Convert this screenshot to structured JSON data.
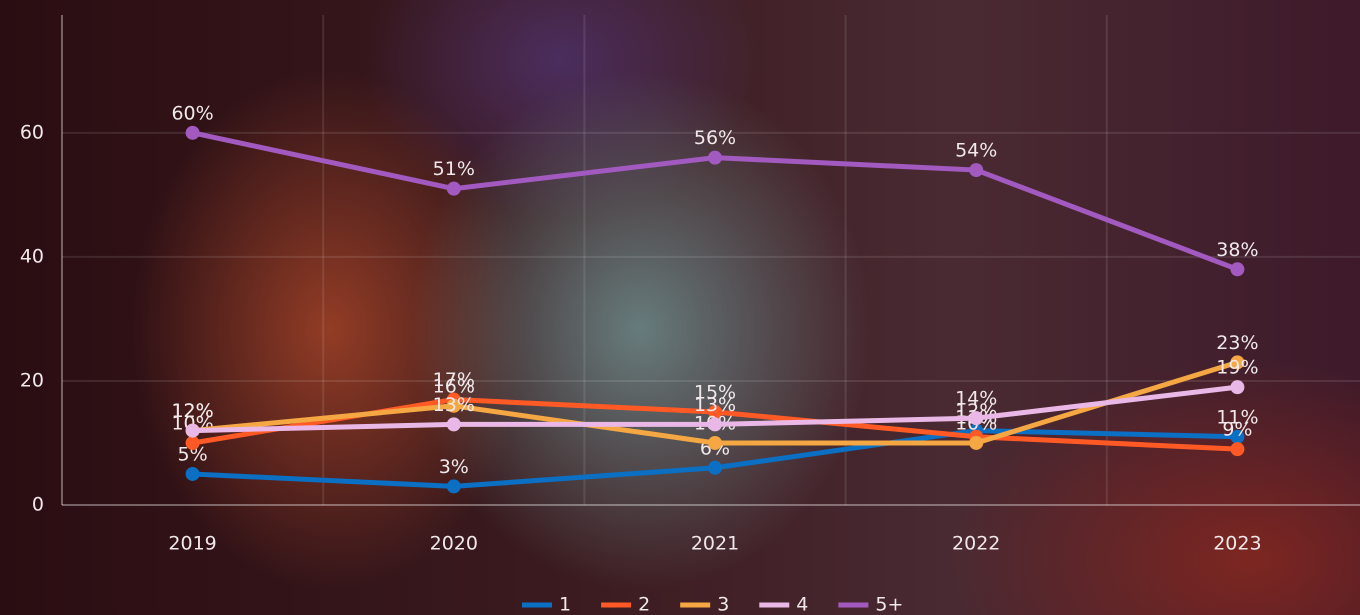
{
  "chart_data": {
    "type": "line",
    "categories": [
      "2019",
      "2020",
      "2021",
      "2022",
      "2023"
    ],
    "series": [
      {
        "name": "1",
        "color": "#0b6fc4",
        "values": [
          5,
          3,
          6,
          12,
          11
        ],
        "value_labels": [
          "5%",
          "3%",
          "6%",
          "12%",
          "11%"
        ]
      },
      {
        "name": "2",
        "color": "#ff5a26",
        "values": [
          10,
          17,
          15,
          11,
          9
        ],
        "value_labels": [
          "10%",
          "17%",
          "15%",
          "11%",
          "9%"
        ]
      },
      {
        "name": "3",
        "color": "#f4a742",
        "values": [
          12,
          16,
          10,
          10,
          23
        ],
        "value_labels": [
          "12%",
          "16%",
          "10%",
          "10%",
          "23%"
        ]
      },
      {
        "name": "4",
        "color": "#eab8e6",
        "values": [
          12,
          13,
          13,
          14,
          19
        ],
        "value_labels": [
          "12%",
          "13%",
          "13%",
          "14%",
          "19%"
        ]
      },
      {
        "name": "5+",
        "color": "#a25ac0",
        "values": [
          60,
          51,
          56,
          54,
          38
        ],
        "value_labels": [
          "60%",
          "51%",
          "56%",
          "54%",
          "38%"
        ]
      }
    ],
    "ylim": [
      0,
      79
    ],
    "yticks": [
      0,
      20,
      40,
      60
    ],
    "grid": true,
    "legend": "bottom"
  }
}
